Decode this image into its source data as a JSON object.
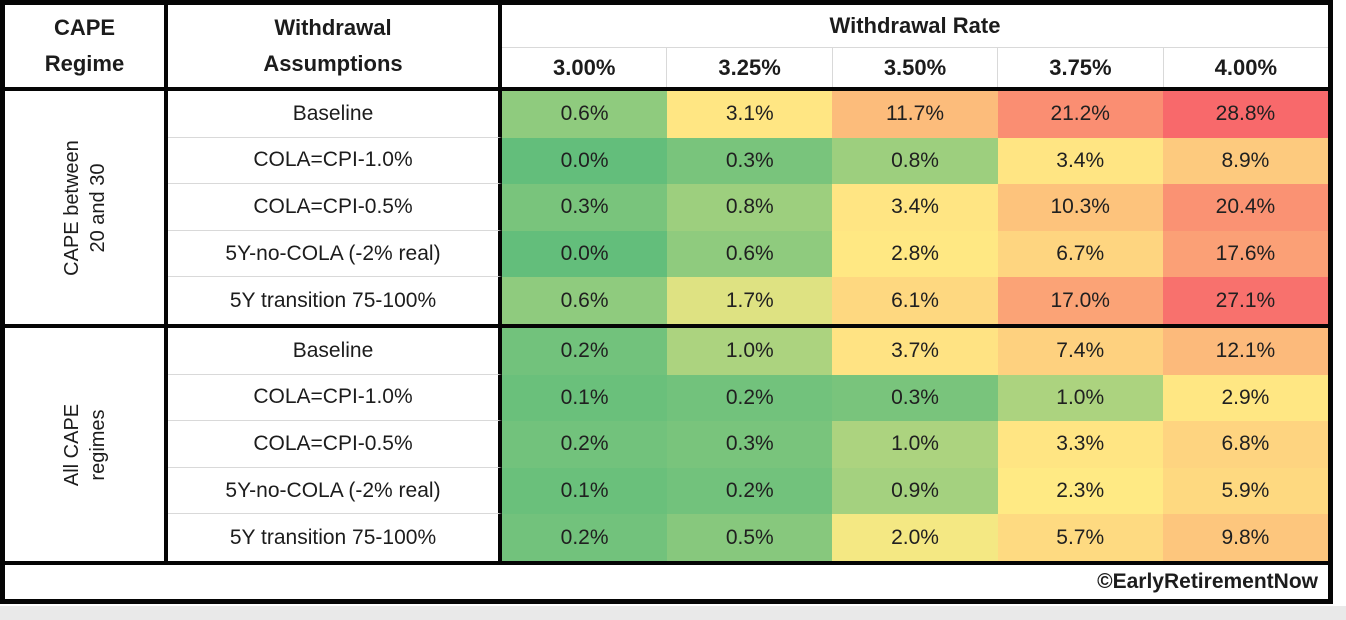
{
  "header": {
    "regime_line1": "CAPE",
    "regime_line2": "Regime",
    "assumptions_line1": "Withdrawal",
    "assumptions_line2": "Assumptions",
    "rate_title": "Withdrawal Rate",
    "rate_columns": [
      "3.00%",
      "3.25%",
      "3.50%",
      "3.75%",
      "4.00%"
    ]
  },
  "groups": [
    {
      "regime_line1": "CAPE between",
      "regime_line2": "20 and 30",
      "rows": [
        {
          "label": "Baseline",
          "values": [
            "0.6%",
            "3.1%",
            "11.7%",
            "21.2%",
            "28.8%"
          ]
        },
        {
          "label": "COLA=CPI-1.0%",
          "values": [
            "0.0%",
            "0.3%",
            "0.8%",
            "3.4%",
            "8.9%"
          ]
        },
        {
          "label": "COLA=CPI-0.5%",
          "values": [
            "0.3%",
            "0.8%",
            "3.4%",
            "10.3%",
            "20.4%"
          ]
        },
        {
          "label": "5Y-no-COLA (-2% real)",
          "values": [
            "0.0%",
            "0.6%",
            "2.8%",
            "6.7%",
            "17.6%"
          ]
        },
        {
          "label": "5Y transition 75-100%",
          "values": [
            "0.6%",
            "1.7%",
            "6.1%",
            "17.0%",
            "27.1%"
          ]
        }
      ]
    },
    {
      "regime_line1": "All CAPE",
      "regime_line2": "regimes",
      "rows": [
        {
          "label": "Baseline",
          "values": [
            "0.2%",
            "1.0%",
            "3.7%",
            "7.4%",
            "12.1%"
          ]
        },
        {
          "label": "COLA=CPI-1.0%",
          "values": [
            "0.1%",
            "0.2%",
            "0.3%",
            "1.0%",
            "2.9%"
          ]
        },
        {
          "label": "COLA=CPI-0.5%",
          "values": [
            "0.2%",
            "0.3%",
            "1.0%",
            "3.3%",
            "6.8%"
          ]
        },
        {
          "label": "5Y-no-COLA (-2% real)",
          "values": [
            "0.1%",
            "0.2%",
            "0.9%",
            "2.3%",
            "5.9%"
          ]
        },
        {
          "label": "5Y transition 75-100%",
          "values": [
            "0.2%",
            "0.5%",
            "2.0%",
            "5.7%",
            "9.8%"
          ]
        }
      ]
    }
  ],
  "footer": {
    "credit": "©EarlyRetirementNow"
  },
  "chart_data": {
    "type": "heatmap",
    "title": "Withdrawal Rate",
    "columns": [
      "3.00%",
      "3.25%",
      "3.50%",
      "3.75%",
      "4.00%"
    ],
    "row_groups": [
      {
        "regime": "CAPE between 20 and 30",
        "rows": [
          {
            "assumption": "Baseline",
            "values": [
              0.6,
              3.1,
              11.7,
              21.2,
              28.8
            ]
          },
          {
            "assumption": "COLA=CPI-1.0%",
            "values": [
              0.0,
              0.3,
              0.8,
              3.4,
              8.9
            ]
          },
          {
            "assumption": "COLA=CPI-0.5%",
            "values": [
              0.3,
              0.8,
              3.4,
              10.3,
              20.4
            ]
          },
          {
            "assumption": "5Y-no-COLA (-2% real)",
            "values": [
              0.0,
              0.6,
              2.8,
              6.7,
              17.6
            ]
          },
          {
            "assumption": "5Y transition 75-100%",
            "values": [
              0.6,
              1.7,
              6.1,
              17.0,
              27.1
            ]
          }
        ]
      },
      {
        "regime": "All CAPE regimes",
        "rows": [
          {
            "assumption": "Baseline",
            "values": [
              0.2,
              1.0,
              3.7,
              7.4,
              12.1
            ]
          },
          {
            "assumption": "COLA=CPI-1.0%",
            "values": [
              0.1,
              0.2,
              0.3,
              1.0,
              2.9
            ]
          },
          {
            "assumption": "COLA=CPI-0.5%",
            "values": [
              0.2,
              0.3,
              1.0,
              3.3,
              6.8
            ]
          },
          {
            "assumption": "5Y-no-COLA (-2% real)",
            "values": [
              0.1,
              0.2,
              0.9,
              2.3,
              5.9
            ]
          },
          {
            "assumption": "5Y transition 75-100%",
            "values": [
              0.2,
              0.5,
              2.0,
              5.7,
              9.8
            ]
          }
        ]
      }
    ],
    "value_format": "percent",
    "colorscale": {
      "min_color": "#63BE7B",
      "mid_color": "#FFEB84",
      "max_color": "#F8696B",
      "min_value": 0.0,
      "mid_value": 2.15,
      "max_value": 28.8
    }
  }
}
